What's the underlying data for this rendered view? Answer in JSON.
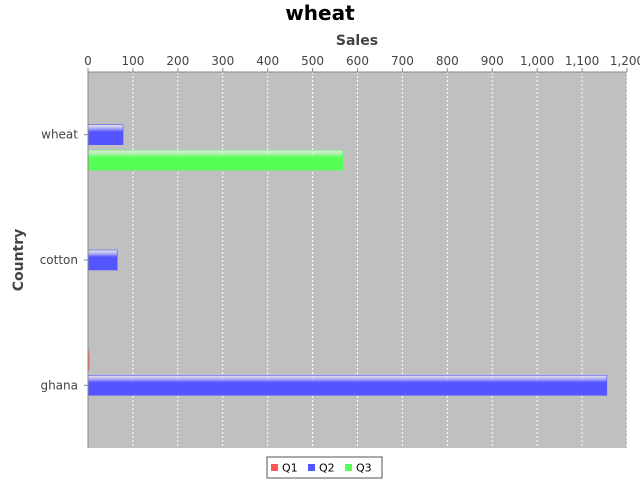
{
  "chart_data": {
    "type": "bar",
    "orientation": "horizontal",
    "title": "wheat",
    "xlabel": "Sales",
    "ylabel": "Country",
    "xlim": [
      0,
      1200
    ],
    "x_ticks": [
      0,
      100,
      200,
      300,
      400,
      500,
      600,
      700,
      800,
      900,
      1000,
      1100,
      1200
    ],
    "x_tick_labels": [
      "0",
      "100",
      "200",
      "300",
      "400",
      "500",
      "600",
      "700",
      "800",
      "900",
      "1,000",
      "1,100",
      "1,200"
    ],
    "x_axis_position": "top",
    "grid": true,
    "legend_position": "bottom",
    "categories": [
      "wheat",
      "cotton",
      "ghana"
    ],
    "series": [
      {
        "name": "Q1",
        "color": "#ff5555",
        "values": [
          0,
          0,
          2
        ]
      },
      {
        "name": "Q2",
        "color": "#5555ff",
        "values": [
          78,
          65,
          1155
        ]
      },
      {
        "name": "Q3",
        "color": "#55ff55",
        "values": [
          567,
          0,
          0
        ]
      }
    ],
    "plot_background": "#c0c0c0"
  }
}
